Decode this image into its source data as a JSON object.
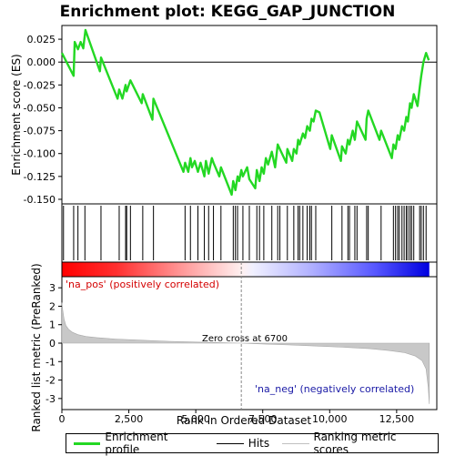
{
  "title": "Enrichment plot: KEGG_GAP_JUNCTION",
  "colors": {
    "enrichment_line": "#23d823",
    "hits": "#000000",
    "metric_fill": "#c8c8c8",
    "pos_label": "#d40000",
    "neg_label": "#1a1aa6",
    "gradient_red": "#ff0000",
    "gradient_blue": "#0000ff"
  },
  "annotations": {
    "pos": "'na_pos' (positively correlated)",
    "neg": "'na_neg' (negatively correlated)",
    "zero_cross": "Zero cross at 6700"
  },
  "legend": {
    "enrichment": "Enrichment profile",
    "hits": "Hits",
    "metric": "Ranking metric scores"
  },
  "chart_data": [
    {
      "type": "line",
      "name": "enrichment_profile",
      "ylabel": "Enrichment score (ES)",
      "xlim": [
        0,
        14000
      ],
      "ylim": [
        -0.155,
        0.04
      ],
      "yticks": [
        0.025,
        0.0,
        -0.025,
        -0.05,
        -0.075,
        -0.1,
        -0.125,
        -0.15
      ],
      "ytick_labels": [
        "0.025",
        "0.000",
        "-0.025",
        "-0.050",
        "-0.075",
        "-0.100",
        "-0.125",
        "-0.150"
      ],
      "x": [
        0,
        440,
        480,
        600,
        700,
        800,
        880,
        1420,
        1460,
        2080,
        2140,
        2260,
        2380,
        2420,
        2500,
        2560,
        2980,
        3020,
        3380,
        3420,
        4540,
        4600,
        4720,
        4800,
        4860,
        4960,
        5080,
        5180,
        5320,
        5380,
        5480,
        5600,
        5660,
        5880,
        5940,
        6340,
        6400,
        6480,
        6560,
        6620,
        6700,
        6760,
        6920,
        7000,
        7220,
        7280,
        7380,
        7460,
        7540,
        7620,
        7700,
        7840,
        7960,
        8060,
        8140,
        8380,
        8420,
        8600,
        8660,
        8760,
        8820,
        8880,
        9000,
        9080,
        9160,
        9260,
        9320,
        9400,
        9480,
        9620,
        10020,
        10080,
        10420,
        10460,
        10600,
        10680,
        10740,
        10860,
        10940,
        11020,
        11340,
        11380,
        11440,
        11860,
        11920,
        12320,
        12380,
        12460,
        12540,
        12600,
        12700,
        12780,
        12860,
        12920,
        13000,
        13060,
        13140,
        13280,
        13360,
        13420,
        13500,
        13600,
        13700
      ],
      "y": [
        0.01,
        -0.015,
        0.022,
        0.014,
        0.022,
        0.015,
        0.035,
        -0.01,
        0.005,
        -0.04,
        -0.03,
        -0.04,
        -0.025,
        -0.032,
        -0.025,
        -0.02,
        -0.045,
        -0.035,
        -0.063,
        -0.04,
        -0.12,
        -0.11,
        -0.12,
        -0.105,
        -0.115,
        -0.108,
        -0.12,
        -0.11,
        -0.125,
        -0.108,
        -0.122,
        -0.105,
        -0.11,
        -0.125,
        -0.115,
        -0.145,
        -0.13,
        -0.14,
        -0.125,
        -0.13,
        -0.118,
        -0.125,
        -0.115,
        -0.128,
        -0.138,
        -0.118,
        -0.13,
        -0.115,
        -0.122,
        -0.105,
        -0.112,
        -0.098,
        -0.115,
        -0.09,
        -0.095,
        -0.11,
        -0.095,
        -0.108,
        -0.095,
        -0.1,
        -0.085,
        -0.09,
        -0.078,
        -0.083,
        -0.07,
        -0.075,
        -0.062,
        -0.065,
        -0.053,
        -0.055,
        -0.095,
        -0.08,
        -0.108,
        -0.092,
        -0.1,
        -0.085,
        -0.09,
        -0.075,
        -0.085,
        -0.065,
        -0.085,
        -0.062,
        -0.053,
        -0.085,
        -0.075,
        -0.105,
        -0.09,
        -0.095,
        -0.08,
        -0.085,
        -0.07,
        -0.075,
        -0.06,
        -0.065,
        -0.045,
        -0.05,
        -0.035,
        -0.048,
        -0.028,
        -0.015,
        0.0,
        0.01,
        0.002
      ],
      "hit_positions": [
        60,
        440,
        600,
        860,
        1460,
        2140,
        2380,
        2420,
        2560,
        3020,
        3420,
        4600,
        4800,
        5080,
        5320,
        5480,
        5660,
        5940,
        6400,
        6480,
        6560,
        6760,
        7000,
        7280,
        7380,
        7540,
        7840,
        8060,
        8140,
        8420,
        8660,
        8820,
        8880,
        9000,
        9160,
        9260,
        9320,
        9480,
        10080,
        10460,
        10680,
        10740,
        10940,
        11020,
        11380,
        11440,
        11920,
        12380,
        12460,
        12540,
        12600,
        12700,
        12780,
        12860,
        12920,
        13000,
        13060,
        13140,
        13360,
        13420,
        13500,
        13600
      ]
    },
    {
      "type": "area",
      "name": "ranking_metric",
      "xlabel": "Rank in Ordered Dataset",
      "ylabel": "Ranked list metric (PreRanked)",
      "xlim": [
        0,
        14000
      ],
      "ylim": [
        -3.6,
        3.6
      ],
      "yticks": [
        3,
        2,
        1,
        0,
        -1,
        -2,
        -3
      ],
      "xticks": [
        0,
        2500,
        5000,
        7500,
        10000,
        12500
      ],
      "xtick_labels": [
        "0",
        "2,500",
        "5,000",
        "7,500",
        "10,000",
        "12,500"
      ],
      "x": [
        0,
        30,
        80,
        150,
        250,
        400,
        600,
        900,
        1300,
        2000,
        3000,
        4000,
        5000,
        6000,
        6700,
        7500,
        8500,
        9500,
        10500,
        11500,
        12200,
        12800,
        13200,
        13450,
        13600,
        13680,
        13720
      ],
      "y": [
        2.2,
        1.8,
        1.3,
        0.95,
        0.75,
        0.58,
        0.46,
        0.36,
        0.3,
        0.22,
        0.16,
        0.1,
        0.06,
        0.02,
        0.0,
        -0.05,
        -0.1,
        -0.16,
        -0.22,
        -0.3,
        -0.4,
        -0.52,
        -0.7,
        -0.95,
        -1.4,
        -2.4,
        -3.3
      ]
    }
  ]
}
